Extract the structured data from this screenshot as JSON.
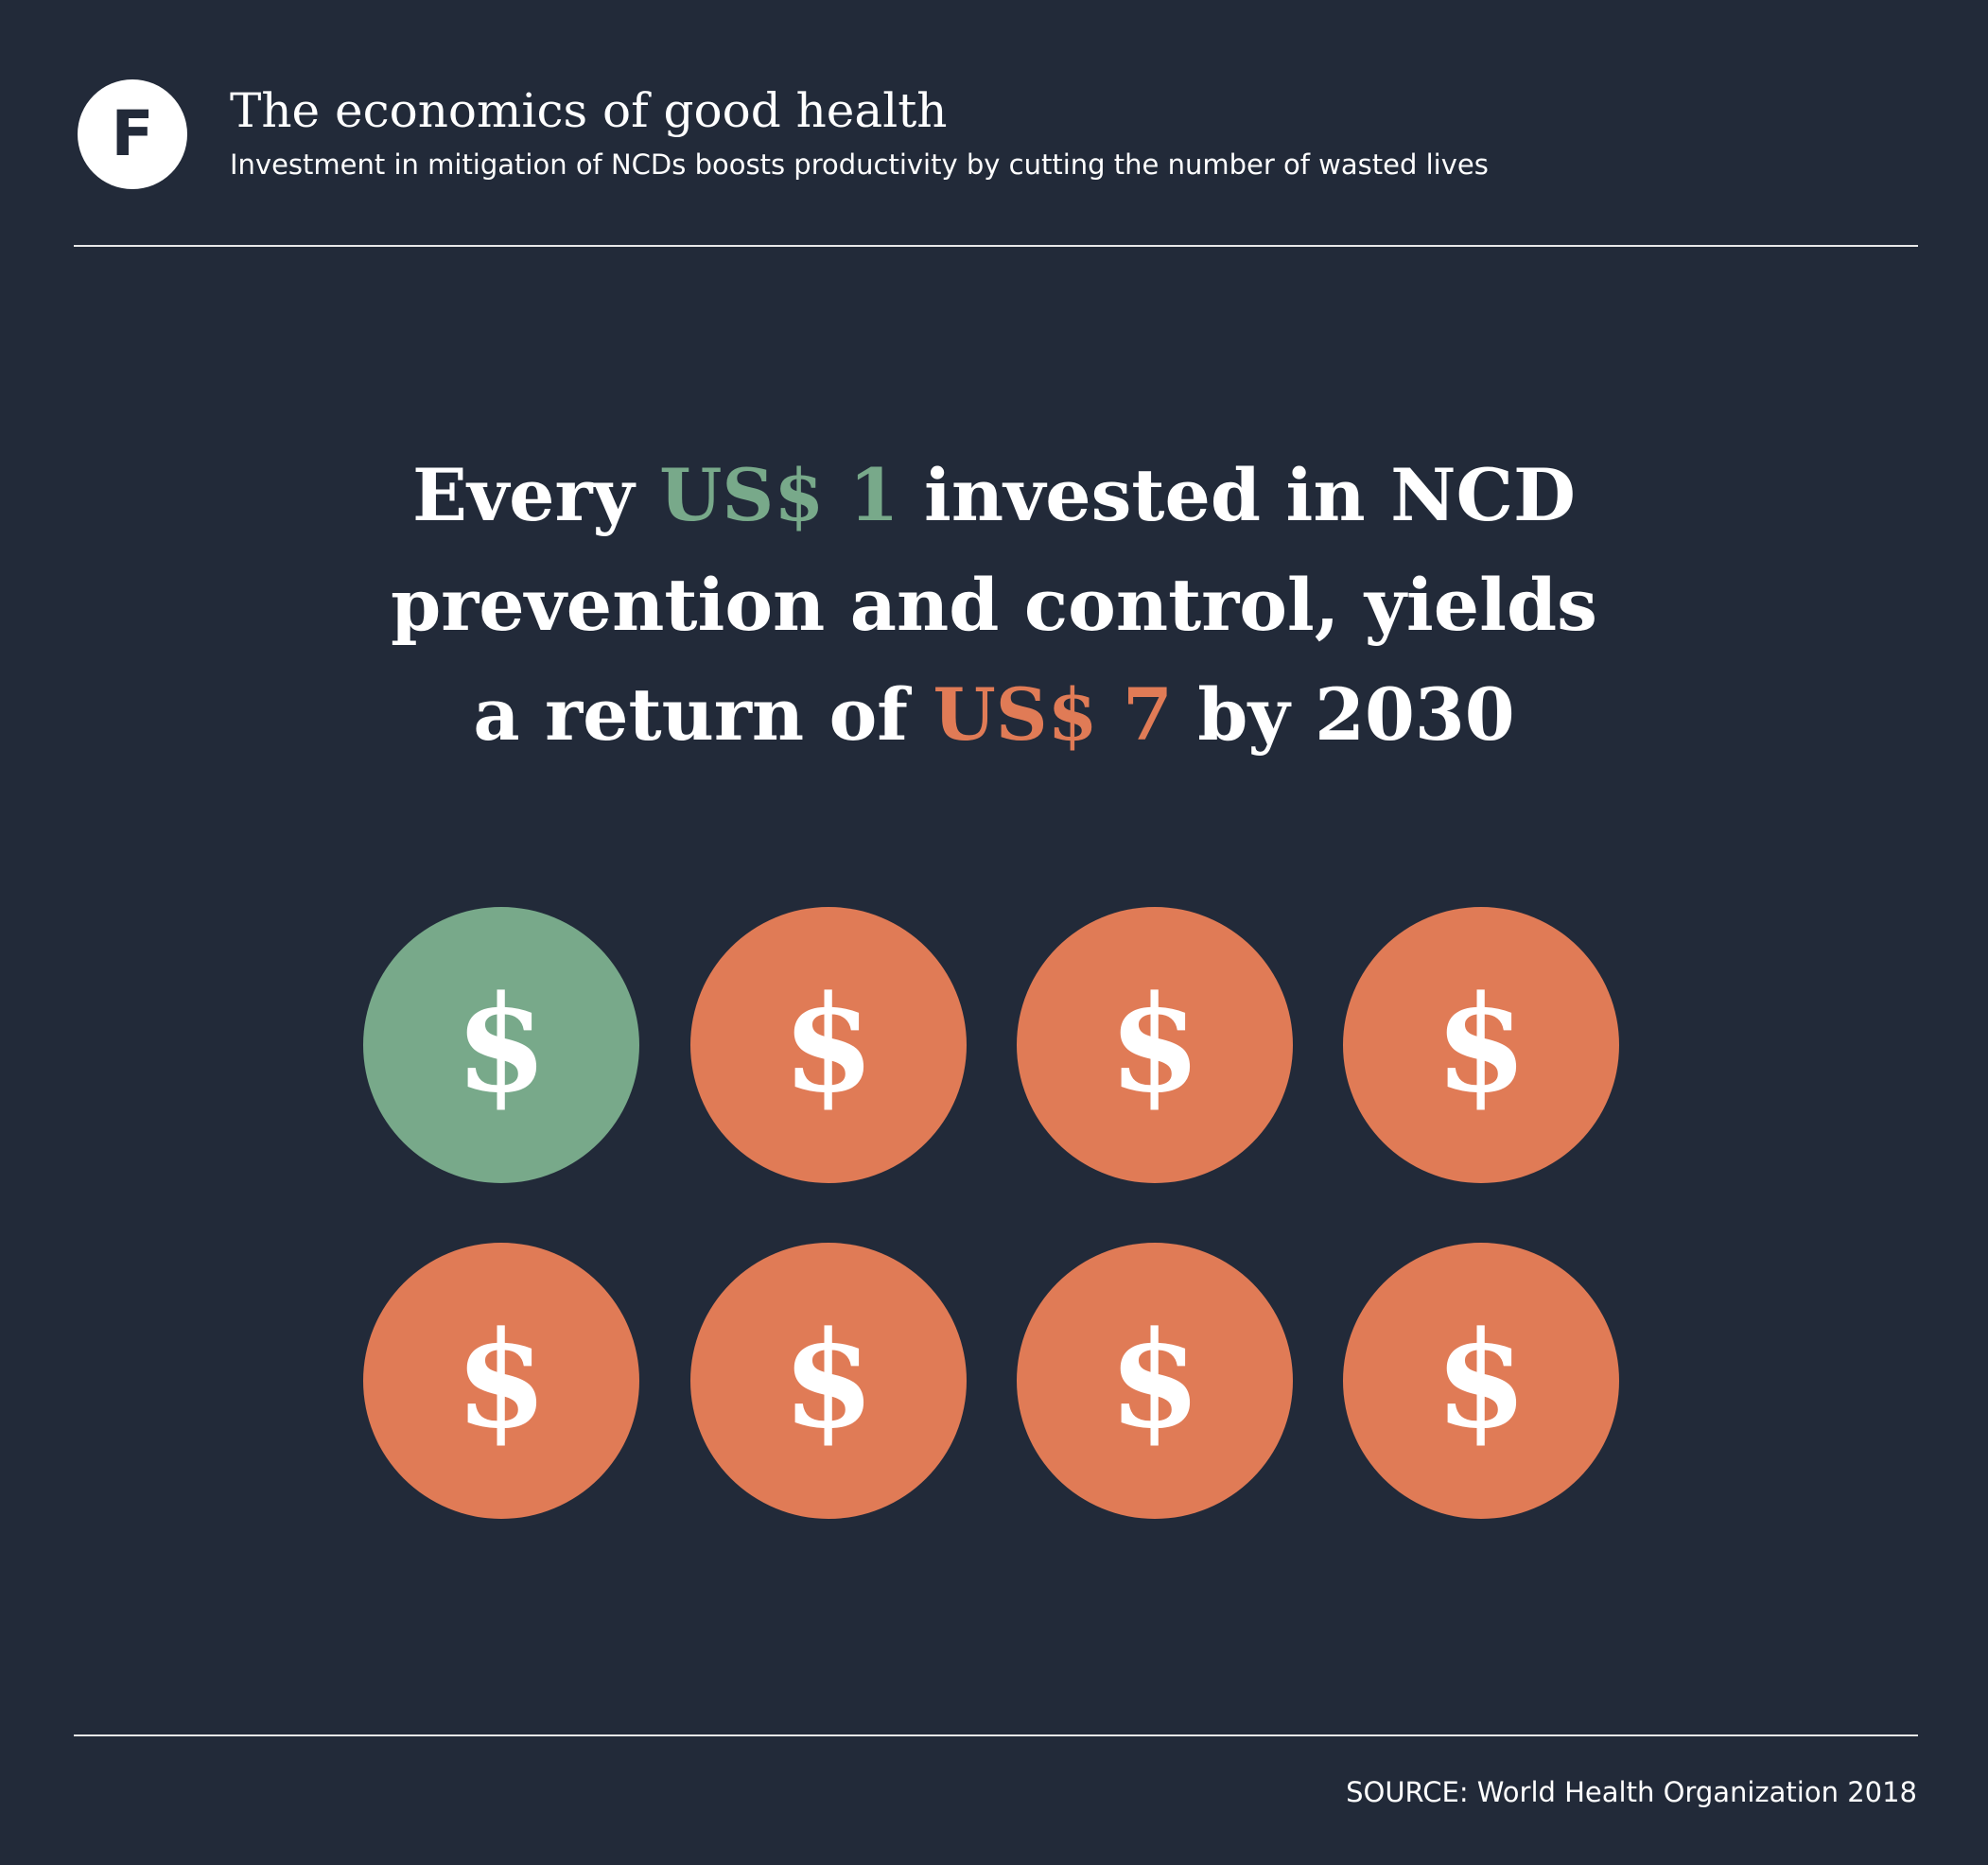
{
  "header": {
    "logo_letter": "F",
    "title": "The economics of good health",
    "subtitle": "Investment in mitigation of NCDs boosts productivity by cutting the number of wasted lives"
  },
  "headline": {
    "line1_a": "Every ",
    "invest_amount": "US$ 1",
    "line1_b": " invested in NCD",
    "line2": "prevention and control, yields",
    "line3_a": "a return of ",
    "return_amount": "US$ 7",
    "line3_b": " by 2030"
  },
  "colors": {
    "background": "#222a39",
    "invested": "#78a98a",
    "returned": "#e07b56",
    "text": "#ffffff"
  },
  "coins": [
    {
      "symbol": "$",
      "kind": "invested",
      "color": "#78a98a"
    },
    {
      "symbol": "$",
      "kind": "returned",
      "color": "#e07b56"
    },
    {
      "symbol": "$",
      "kind": "returned",
      "color": "#e07b56"
    },
    {
      "symbol": "$",
      "kind": "returned",
      "color": "#e07b56"
    },
    {
      "symbol": "$",
      "kind": "returned",
      "color": "#e07b56"
    },
    {
      "symbol": "$",
      "kind": "returned",
      "color": "#e07b56"
    },
    {
      "symbol": "$",
      "kind": "returned",
      "color": "#e07b56"
    },
    {
      "symbol": "$",
      "kind": "returned",
      "color": "#e07b56"
    }
  ],
  "source": "SOURCE: World Health Organization 2018"
}
